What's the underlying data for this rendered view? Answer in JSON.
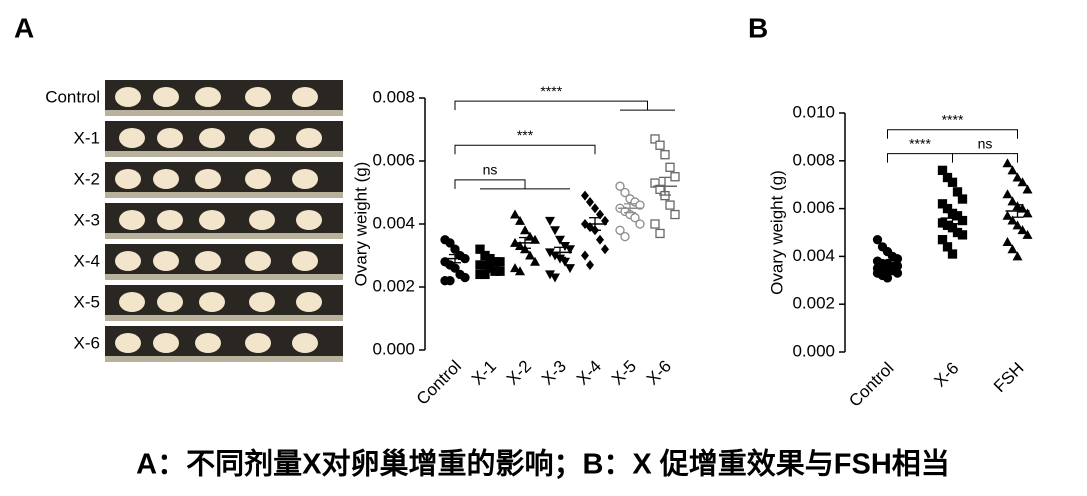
{
  "panel_labels": [
    "A",
    "B"
  ],
  "photo_labels": [
    "Control",
    "X-1",
    "X-2",
    "X-3",
    "X-4",
    "X-5",
    "X-6"
  ],
  "caption": "A：不同剂量X对卵巢增重的影响；B：X 促增重效果与FSH相当",
  "chart_data": [
    {
      "type": "dotplot",
      "y_label": "Ovary weight (g)",
      "ylim": [
        0,
        0.008
      ],
      "yticks": [
        {
          "value": 0,
          "label": "0.000"
        },
        {
          "value": 0.002,
          "label": "0.002"
        },
        {
          "value": 0.004,
          "label": "0.004"
        },
        {
          "value": 0.006,
          "label": "0.006"
        },
        {
          "value": 0.008,
          "label": "0.008"
        }
      ],
      "groups": [
        {
          "name": "Control",
          "marker": "circle",
          "color": "#000000",
          "values": [
            0.0035,
            0.0034,
            0.0032,
            0.003,
            0.0029,
            0.0028,
            0.0027,
            0.0026,
            0.0024,
            0.0023,
            0.0022,
            0.0022
          ],
          "mean": 0.0029,
          "sem": 0.00013
        },
        {
          "name": "X-1",
          "marker": "square",
          "color": "#000000",
          "values": [
            0.0032,
            0.003,
            0.0029,
            0.0028,
            0.0028,
            0.0027,
            0.0027,
            0.0026,
            0.0025,
            0.0025,
            0.0024,
            0.0024
          ],
          "mean": 0.0028,
          "sem": 8e-05
        },
        {
          "name": "X-2",
          "marker": "triangle",
          "color": "#000000",
          "values": [
            0.0043,
            0.0041,
            0.0038,
            0.0036,
            0.0035,
            0.0034,
            0.0033,
            0.0032,
            0.003,
            0.0028,
            0.0026,
            0.0025
          ],
          "mean": 0.0034,
          "sem": 0.00017
        },
        {
          "name": "X-3",
          "marker": "triangle-down",
          "color": "#000000",
          "values": [
            0.0041,
            0.0038,
            0.0035,
            0.0033,
            0.0032,
            0.0031,
            0.003,
            0.0029,
            0.0028,
            0.0026,
            0.0024,
            0.0023
          ],
          "mean": 0.0031,
          "sem": 0.00016
        },
        {
          "name": "X-4",
          "marker": "diamond",
          "color": "#000000",
          "values": [
            0.0049,
            0.0047,
            0.0045,
            0.0043,
            0.0041,
            0.004,
            0.0039,
            0.0038,
            0.0035,
            0.0032,
            0.003,
            0.0027
          ],
          "mean": 0.004,
          "sem": 0.0002
        },
        {
          "name": "X-5",
          "marker": "circle-open",
          "color": "#8c8c8c",
          "values": [
            0.0052,
            0.005,
            0.0048,
            0.0047,
            0.0046,
            0.0045,
            0.0044,
            0.0043,
            0.0042,
            0.004,
            0.0038,
            0.0036
          ],
          "mean": 0.0045,
          "sem": 0.00014
        },
        {
          "name": "X-6",
          "marker": "square-open",
          "color": "#666666",
          "values": [
            0.0067,
            0.0065,
            0.0062,
            0.0058,
            0.0055,
            0.0053,
            0.0051,
            0.0049,
            0.0046,
            0.0043,
            0.004,
            0.0037
          ],
          "mean": 0.0052,
          "sem": 0.00028
        }
      ],
      "brackets": [
        {
          "text": "ns",
          "y": 0.0054,
          "from": 0,
          "to": [
            1,
            3
          ]
        },
        {
          "text": "***",
          "y": 0.0065,
          "from": 0,
          "to": [
            4,
            4
          ]
        },
        {
          "text": "****",
          "y": 0.0079,
          "from": 0,
          "to": [
            5,
            6
          ]
        }
      ]
    },
    {
      "type": "dotplot",
      "y_label": "Ovary weight (g)",
      "ylim": [
        0,
        0.01
      ],
      "yticks": [
        {
          "value": 0,
          "label": "0.000"
        },
        {
          "value": 0.002,
          "label": "0.002"
        },
        {
          "value": 0.004,
          "label": "0.004"
        },
        {
          "value": 0.006,
          "label": "0.006"
        },
        {
          "value": 0.008,
          "label": "0.008"
        },
        {
          "value": 0.01,
          "label": "0.010"
        }
      ],
      "groups": [
        {
          "name": "Control",
          "marker": "circle",
          "color": "#000000",
          "values": [
            0.0047,
            0.0044,
            0.0042,
            0.004,
            0.0039,
            0.0038,
            0.0037,
            0.0037,
            0.0036,
            0.0036,
            0.0035,
            0.0035,
            0.0034,
            0.0034,
            0.0033,
            0.0033,
            0.0032,
            0.0031
          ],
          "mean": 0.0036,
          "sem": 0.0001
        },
        {
          "name": "X-6",
          "marker": "square",
          "color": "#000000",
          "values": [
            0.0076,
            0.0073,
            0.0071,
            0.0067,
            0.0064,
            0.0062,
            0.006,
            0.0058,
            0.0057,
            0.0055,
            0.0054,
            0.0053,
            0.0052,
            0.005,
            0.0049,
            0.0047,
            0.0044,
            0.0041
          ],
          "mean": 0.0056,
          "sem": 0.00023
        },
        {
          "name": "FSH",
          "marker": "triangle",
          "color": "#000000",
          "values": [
            0.0079,
            0.0076,
            0.0073,
            0.0071,
            0.0068,
            0.0066,
            0.0063,
            0.0061,
            0.006,
            0.0058,
            0.0057,
            0.0055,
            0.0053,
            0.0051,
            0.0049,
            0.0046,
            0.0043,
            0.004
          ],
          "mean": 0.0059,
          "sem": 0.00026
        }
      ],
      "brackets": [
        {
          "text": "****",
          "y": 0.0083,
          "from": 0,
          "to": [
            1,
            1
          ]
        },
        {
          "text": "ns",
          "y": 0.0083,
          "from": 1,
          "to": [
            2,
            2
          ]
        },
        {
          "text": "****",
          "y": 0.0093,
          "from": 0,
          "to": [
            2,
            2
          ]
        }
      ]
    }
  ]
}
